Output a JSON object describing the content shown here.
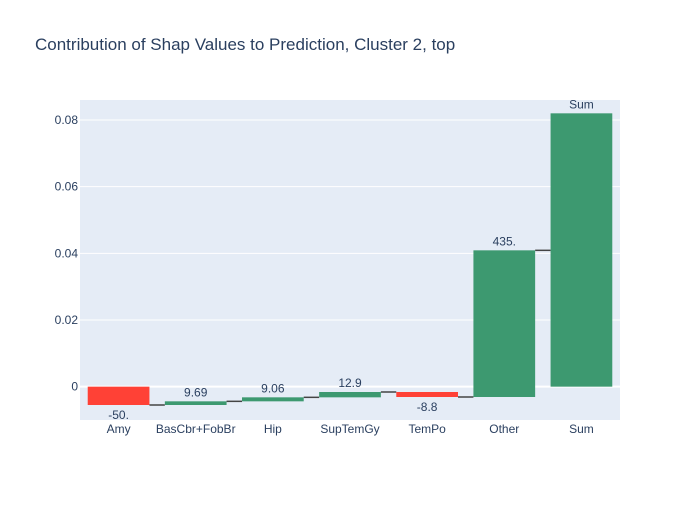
{
  "chart_data": {
    "type": "waterfall",
    "title": "Contribution of Shap Values to Prediction, Cluster 2, top",
    "xlabel": "",
    "ylabel": "",
    "ylim": [
      -0.01,
      0.086
    ],
    "y_ticks": [
      0,
      0.02,
      0.04,
      0.06,
      0.08
    ],
    "y_tick_labels": [
      "0",
      "0.02",
      "0.04",
      "0.06",
      "0.08"
    ],
    "grid": true,
    "legend": "none",
    "categories": [
      "Amy",
      "BasCbr+FobBr",
      "Hip",
      "SupTemGy",
      "TemPo",
      "Other",
      "Sum"
    ],
    "values": [
      -0.0055,
      0.0011,
      0.0012,
      0.0016,
      -0.0015,
      0.044,
      0.082
    ],
    "measures": [
      "relative",
      "relative",
      "relative",
      "relative",
      "relative",
      "relative",
      "total"
    ],
    "labels": [
      "-50.",
      "9.69",
      "9.06",
      "12.9",
      "-8.8",
      "435.",
      "Sum"
    ],
    "colors": {
      "increasing": "#3d9970",
      "decreasing": "#ff4136",
      "plot_bg": "#e5ecf6",
      "grid": "#ffffff",
      "connector": "#444444",
      "text": "#2a3f5f"
    }
  }
}
